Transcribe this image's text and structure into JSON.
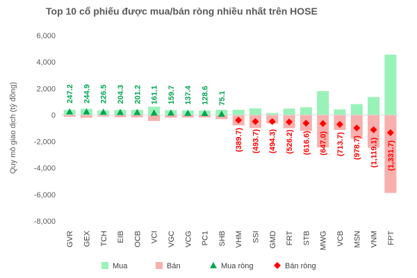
{
  "chart_data": {
    "type": "bar",
    "title": "Top 10 cổ phiếu được mua/bán ròng nhiều nhất trên HOSE",
    "ylabel": "Quy mô giao dịch (tỷ đồng)",
    "ylim": [
      -8000,
      6000
    ],
    "yticks": [
      6000,
      4000,
      2000,
      0,
      -2000,
      -4000,
      -6000,
      -8000
    ],
    "ytick_labels": [
      "6,000",
      "4,000",
      "2,000",
      "0",
      "-2,000",
      "-4,000",
      "-6,000",
      "-8,000"
    ],
    "categories": [
      "GVR",
      "GEX",
      "TCH",
      "EIB",
      "OCB",
      "VCI",
      "VGC",
      "VCG",
      "PC1",
      "SHB",
      "VHM",
      "SSI",
      "GMD",
      "FRT",
      "STB",
      "MWG",
      "VCB",
      "MSN",
      "VNM",
      "FPT"
    ],
    "grid": false,
    "legend_position": "bottom",
    "series": [
      {
        "name": "Mua",
        "kind": "bar",
        "color": "#99f2b8",
        "values": [
          380,
          460,
          340,
          380,
          380,
          620,
          360,
          340,
          330,
          390,
          390,
          500,
          150,
          480,
          580,
          1800,
          420,
          820,
          1350,
          4550
        ]
      },
      {
        "name": "Bán",
        "kind": "bar",
        "color": "#f7b0ad",
        "values": [
          -140,
          -210,
          -120,
          -170,
          -180,
          -450,
          -200,
          -190,
          -190,
          -310,
          -780,
          -980,
          -640,
          -1000,
          -1200,
          -2450,
          -1130,
          -1800,
          -2470,
          -5880
        ]
      },
      {
        "name": "Mua ròng",
        "kind": "marker",
        "marker": "triangle",
        "color": "#00a651",
        "values": [
          247.2,
          244.9,
          226.5,
          204.3,
          201.2,
          161.1,
          159.7,
          137.4,
          128.6,
          75.1,
          null,
          null,
          null,
          null,
          null,
          null,
          null,
          null,
          null,
          null
        ],
        "labels": [
          "247.2",
          "244.9",
          "226.5",
          "204.3",
          "201.2",
          "161.1",
          "159.7",
          "137.4",
          "128.6",
          "75.1",
          "",
          "",
          "",
          "",
          "",
          "",
          "",
          "",
          "",
          ""
        ]
      },
      {
        "name": "Bán ròng",
        "kind": "marker",
        "marker": "diamond",
        "color": "#ff0000",
        "values": [
          null,
          null,
          null,
          null,
          null,
          null,
          null,
          null,
          null,
          null,
          -389.7,
          -493.7,
          -494.3,
          -526.2,
          -616.6,
          -647.0,
          -713.7,
          -978.7,
          -1119.1,
          -1331.7
        ],
        "labels": [
          "",
          "",
          "",
          "",
          "",
          "",
          "",
          "",
          "",
          "",
          "(389.7)",
          "(493.7)",
          "(494.3)",
          "(526.2)",
          "(616.6)",
          "(647.0)",
          "(713.7)",
          "(978.7)",
          "(1,119.1)",
          "(1,331.7)"
        ]
      }
    ]
  }
}
